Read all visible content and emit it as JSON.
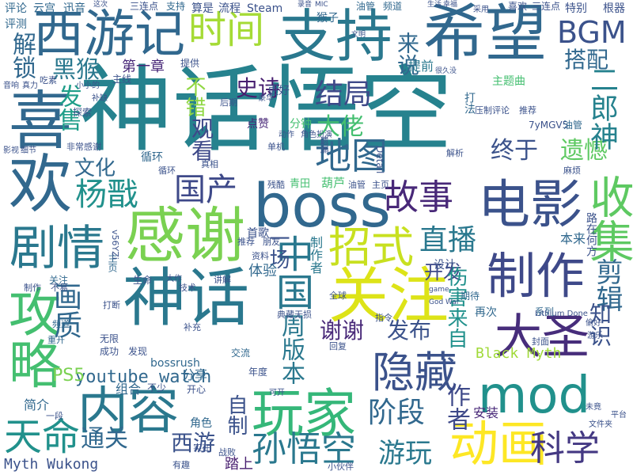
{
  "words": [
    {
      "text": "神话悟空",
      "color": "#26828e"
    },
    {
      "text": "希望",
      "color": "#31688e"
    },
    {
      "text": "支持",
      "color": "#2a788e"
    },
    {
      "text": "西游记",
      "color": "#31688e"
    },
    {
      "text": "时间",
      "color": "#a5db36"
    },
    {
      "text": "BGM",
      "color": "#3b528b"
    },
    {
      "text": "喜欢",
      "color": "#31688e"
    },
    {
      "text": "boss",
      "color": "#31688e"
    },
    {
      "text": "电影",
      "color": "#3b528b"
    },
    {
      "text": "感谢",
      "color": "#7ad151"
    },
    {
      "text": "剧情",
      "color": "#2a788e"
    },
    {
      "text": "招式",
      "color": "#c8e020"
    },
    {
      "text": "收集",
      "color": "#5ec962"
    },
    {
      "text": "神话",
      "color": "#2a788e"
    },
    {
      "text": "关注",
      "color": "#dde318"
    },
    {
      "text": "制作",
      "color": "#3e4989"
    },
    {
      "text": "大圣",
      "color": "#472d7b"
    },
    {
      "text": "攻略",
      "color": "#44bf70"
    },
    {
      "text": "内容",
      "color": "#2a788e"
    },
    {
      "text": "玩家",
      "color": "#35b779"
    },
    {
      "text": "mod",
      "color": "#21918c"
    },
    {
      "text": "隐藏",
      "color": "#3b528b"
    },
    {
      "text": "动画",
      "color": "#fde725"
    },
    {
      "text": "天命",
      "color": "#21918c"
    },
    {
      "text": "孙悟空",
      "color": "#2a788e"
    },
    {
      "text": "科学",
      "color": "#443983"
    },
    {
      "text": "地图",
      "color": "#31688e"
    },
    {
      "text": "故事",
      "color": "#482878"
    },
    {
      "text": "国产",
      "color": "#3e4989"
    },
    {
      "text": "杨戬",
      "color": "#21918c"
    },
    {
      "text": "直播",
      "color": "#2a788e"
    },
    {
      "text": "结局",
      "color": "#3e4989"
    },
    {
      "text": "黑猴",
      "color": "#2a788e"
    },
    {
      "text": "解锁",
      "color": "#31688e"
    },
    {
      "text": "来说",
      "color": "#31688e"
    },
    {
      "text": "史诗",
      "color": "#481f70"
    },
    {
      "text": "搭配",
      "color": "#31688e"
    },
    {
      "text": "不错",
      "color": "#90d743"
    },
    {
      "text": "大佬",
      "color": "#44bf70"
    },
    {
      "text": "发售",
      "color": "#1f9e89"
    },
    {
      "text": "观看",
      "color": "#3e4989"
    },
    {
      "text": "终于",
      "color": "#3b528b"
    },
    {
      "text": "遗憾",
      "color": "#5ec962"
    },
    {
      "text": "二郎神",
      "color": "#26828e"
    },
    {
      "text": "文化",
      "color": "#31688e"
    },
    {
      "text": "第一章",
      "color": "#482878"
    },
    {
      "text": "中国",
      "color": "#2a788e"
    },
    {
      "text": "一场",
      "color": "#3b528b"
    },
    {
      "text": "开发",
      "color": "#3e4989"
    },
    {
      "text": "剪辑",
      "color": "#31688e"
    },
    {
      "text": "画质",
      "color": "#31688e"
    },
    {
      "text": "周版本",
      "color": "#2a788e"
    },
    {
      "text": "谢谢",
      "color": "#482878"
    },
    {
      "text": "发布",
      "color": "#3b528b"
    },
    {
      "text": "伤害来自",
      "color": "#21918c"
    },
    {
      "text": "作者",
      "color": "#3e4989"
    },
    {
      "text": "知识",
      "color": "#3b528b"
    },
    {
      "text": "youtube watch",
      "color": "#31688e"
    },
    {
      "text": "PS5",
      "color": "#7ad151"
    },
    {
      "text": "Black Myth",
      "color": "#a0da39"
    },
    {
      "text": "阶段",
      "color": "#31688e"
    },
    {
      "text": "游玩",
      "color": "#2a788e"
    },
    {
      "text": "通关",
      "color": "#31688e"
    },
    {
      "text": "西游",
      "color": "#3b528b"
    },
    {
      "text": "Myth Wukong",
      "color": "#3b528b"
    },
    {
      "text": "自制",
      "color": "#3b528b"
    },
    {
      "text": "分享",
      "color": "#31688e"
    },
    {
      "text": "安装",
      "color": "#482878"
    },
    {
      "text": "组合",
      "color": "#31688e"
    },
    {
      "text": "简介",
      "color": "#31688e"
    },
    {
      "text": "角色",
      "color": "#31688e"
    },
    {
      "text": "踏上",
      "color": "#481f70"
    },
    {
      "text": "体验",
      "color": "#31688e"
    },
    {
      "text": "设计",
      "color": "#3b528b"
    },
    {
      "text": "首歌",
      "color": "#3b528b"
    },
    {
      "text": "制作者",
      "color": "#2a788e"
    },
    {
      "text": "本来",
      "color": "#31688e"
    },
    {
      "text": "路在何方",
      "color": "#3b528b"
    },
    {
      "text": "主题曲",
      "color": "#44bf70"
    },
    {
      "text": "提前",
      "color": "#2a788e"
    },
    {
      "text": "打法",
      "color": "#31688e"
    },
    {
      "text": "更好",
      "color": "#3b528b"
    },
    {
      "text": "点赞",
      "color": "#482878"
    },
    {
      "text": "分钟",
      "color": "#44bf70"
    },
    {
      "text": "循环",
      "color": "#31688e"
    },
    {
      "text": "Steam",
      "color": "#3b528b"
    },
    {
      "text": "流程",
      "color": "#3b528b"
    },
    {
      "text": "算是",
      "color": "#3b528b"
    },
    {
      "text": "猴子",
      "color": "#31688e"
    },
    {
      "text": "油管",
      "color": "#31688e"
    },
    {
      "text": "频道",
      "color": "#31688e"
    },
    {
      "text": "特别",
      "color": "#3b528b"
    },
    {
      "text": "根器",
      "color": "#3b528b"
    },
    {
      "text": "评论",
      "color": "#31688e"
    },
    {
      "text": "云宫",
      "color": "#31688e"
    },
    {
      "text": "迅音",
      "color": "#31688e"
    },
    {
      "text": "三连点",
      "color": "#3b528b"
    },
    {
      "text": "支持",
      "color": "#31688e"
    },
    {
      "text": "喜欢",
      "color": "#3b528b"
    },
    {
      "text": "三连点",
      "color": "#3b528b"
    },
    {
      "text": "评测",
      "color": "#31688e"
    },
    {
      "text": "再次",
      "color": "#31688e"
    },
    {
      "text": "系列",
      "color": "#31688e"
    },
    {
      "text": "期待",
      "color": "#31688e"
    },
    {
      "text": "bossrush",
      "color": "#31688e"
    },
    {
      "text": "成功",
      "color": "#3b528b"
    },
    {
      "text": "发现",
      "color": "#3b528b"
    },
    {
      "text": "无限",
      "color": "#3b528b"
    },
    {
      "text": "交流",
      "color": "#31688e"
    },
    {
      "text": "年度",
      "color": "#3b528b"
    },
    {
      "text": "不少",
      "color": "#3b528b"
    },
    {
      "text": "开心",
      "color": "#3b528b"
    },
    {
      "text": "主页",
      "color": "#31688e"
    },
    {
      "text": "提供",
      "color": "#3b528b"
    },
    {
      "text": "主线",
      "color": "#3b528b"
    },
    {
      "text": "探索",
      "color": "#3b528b"
    },
    {
      "text": "非常感谢",
      "color": "#3b528b"
    },
    {
      "text": "关注",
      "color": "#31688e"
    },
    {
      "text": "生命",
      "color": "#3b528b"
    },
    {
      "text": "技术",
      "color": "#3b528b"
    },
    {
      "text": "讲解",
      "color": "#3b528b"
    },
    {
      "text": "打断",
      "color": "#3b528b"
    },
    {
      "text": "补充",
      "color": "#3b528b"
    },
    {
      "text": "频道",
      "color": "#31688e"
    },
    {
      "text": "重开",
      "color": "#31688e"
    },
    {
      "text": "7yMGV5",
      "color": "#3b528b"
    },
    {
      "text": "油管",
      "color": "#31688e"
    },
    {
      "text": "压制评论",
      "color": "#3b528b"
    },
    {
      "text": "推荐",
      "color": "#3b528b"
    },
    {
      "text": "解析",
      "color": "#3b528b"
    },
    {
      "text": "麻烦",
      "color": "#3b528b"
    },
    {
      "text": "循环",
      "color": "#3b528b"
    },
    {
      "text": "单机",
      "color": "#3b528b"
    },
    {
      "text": "真相",
      "color": "#3b528b"
    },
    {
      "text": "遗漏",
      "color": "#3b528b"
    },
    {
      "text": "Detail",
      "color": "#3b528b"
    },
    {
      "text": "青田",
      "color": "#44bf70"
    },
    {
      "text": "葫芦",
      "color": "#44bf70"
    },
    {
      "text": "油管",
      "color": "#3b528b"
    },
    {
      "text": "主页",
      "color": "#3b528b"
    },
    {
      "text": "残酷",
      "color": "#3b528b"
    },
    {
      "text": "资料",
      "color": "#3b528b"
    },
    {
      "text": "推荐",
      "color": "#3b528b"
    },
    {
      "text": "朋友",
      "color": "#3b528b"
    },
    {
      "text": "全球",
      "color": "#3b528b"
    },
    {
      "text": "典藏",
      "color": "#3b528b"
    },
    {
      "text": "无损",
      "color": "#3b528b"
    },
    {
      "text": "回复",
      "color": "#3b528b"
    },
    {
      "text": "指令",
      "color": "#3b528b"
    },
    {
      "text": "Lithium Done",
      "color": "#3b528b"
    },
    {
      "text": "偷好",
      "color": "#3b528b"
    },
    {
      "text": "游乐",
      "color": "#3b528b"
    },
    {
      "text": "封面",
      "color": "#3b528b"
    },
    {
      "text": "平台",
      "color": "#3b528b"
    },
    {
      "text": "文件夹",
      "color": "#3b528b"
    },
    {
      "text": "未竟",
      "color": "#3b528b"
    },
    {
      "text": "有趣",
      "color": "#3b528b"
    },
    {
      "text": "实在",
      "color": "#3b528b"
    },
    {
      "text": "小伙伴",
      "color": "#3b528b"
    },
    {
      "text": "战败",
      "color": "#3b528b"
    },
    {
      "text": "动作",
      "color": "#3b528b"
    },
    {
      "text": "角色扮演",
      "color": "#3b528b"
    },
    {
      "text": "后期",
      "color": "#3b528b"
    },
    {
      "text": "豪华",
      "color": "#3b528b"
    },
    {
      "text": "可开",
      "color": "#3b528b"
    },
    {
      "text": "一段",
      "color": "#3b528b"
    },
    {
      "text": "大作",
      "color": "#3b528b"
    },
    {
      "text": "音响",
      "color": "#3b528b"
    },
    {
      "text": "真力",
      "color": "#3b528b"
    },
    {
      "text": "吃素",
      "color": "#3b528b"
    },
    {
      "text": "小小的",
      "color": "#3b528b"
    },
    {
      "text": "补缺",
      "color": "#3b528b"
    },
    {
      "text": "制作",
      "color": "#3b528b"
    },
    {
      "text": "不易",
      "color": "#3b528b"
    },
    {
      "text": "影视",
      "color": "#3b528b"
    },
    {
      "text": "细节",
      "color": "#3b528b"
    },
    {
      "text": "录音",
      "color": "#3b528b"
    },
    {
      "text": "MIC",
      "color": "#3b528b"
    },
    {
      "text": "game",
      "color": "#3b528b"
    },
    {
      "text": "God War",
      "color": "#3b528b"
    },
    {
      "text": "v56YZi",
      "color": "#3b528b"
    },
    {
      "text": "文明",
      "color": "#3b528b"
    },
    {
      "text": "很久没",
      "color": "#3b528b"
    },
    {
      "text": "采用",
      "color": "#3b528b"
    },
    {
      "text": "生活",
      "color": "#3b528b"
    },
    {
      "text": "幸福",
      "color": "#3b528b"
    },
    {
      "text": "这次",
      "color": "#3b528b"
    }
  ]
}
